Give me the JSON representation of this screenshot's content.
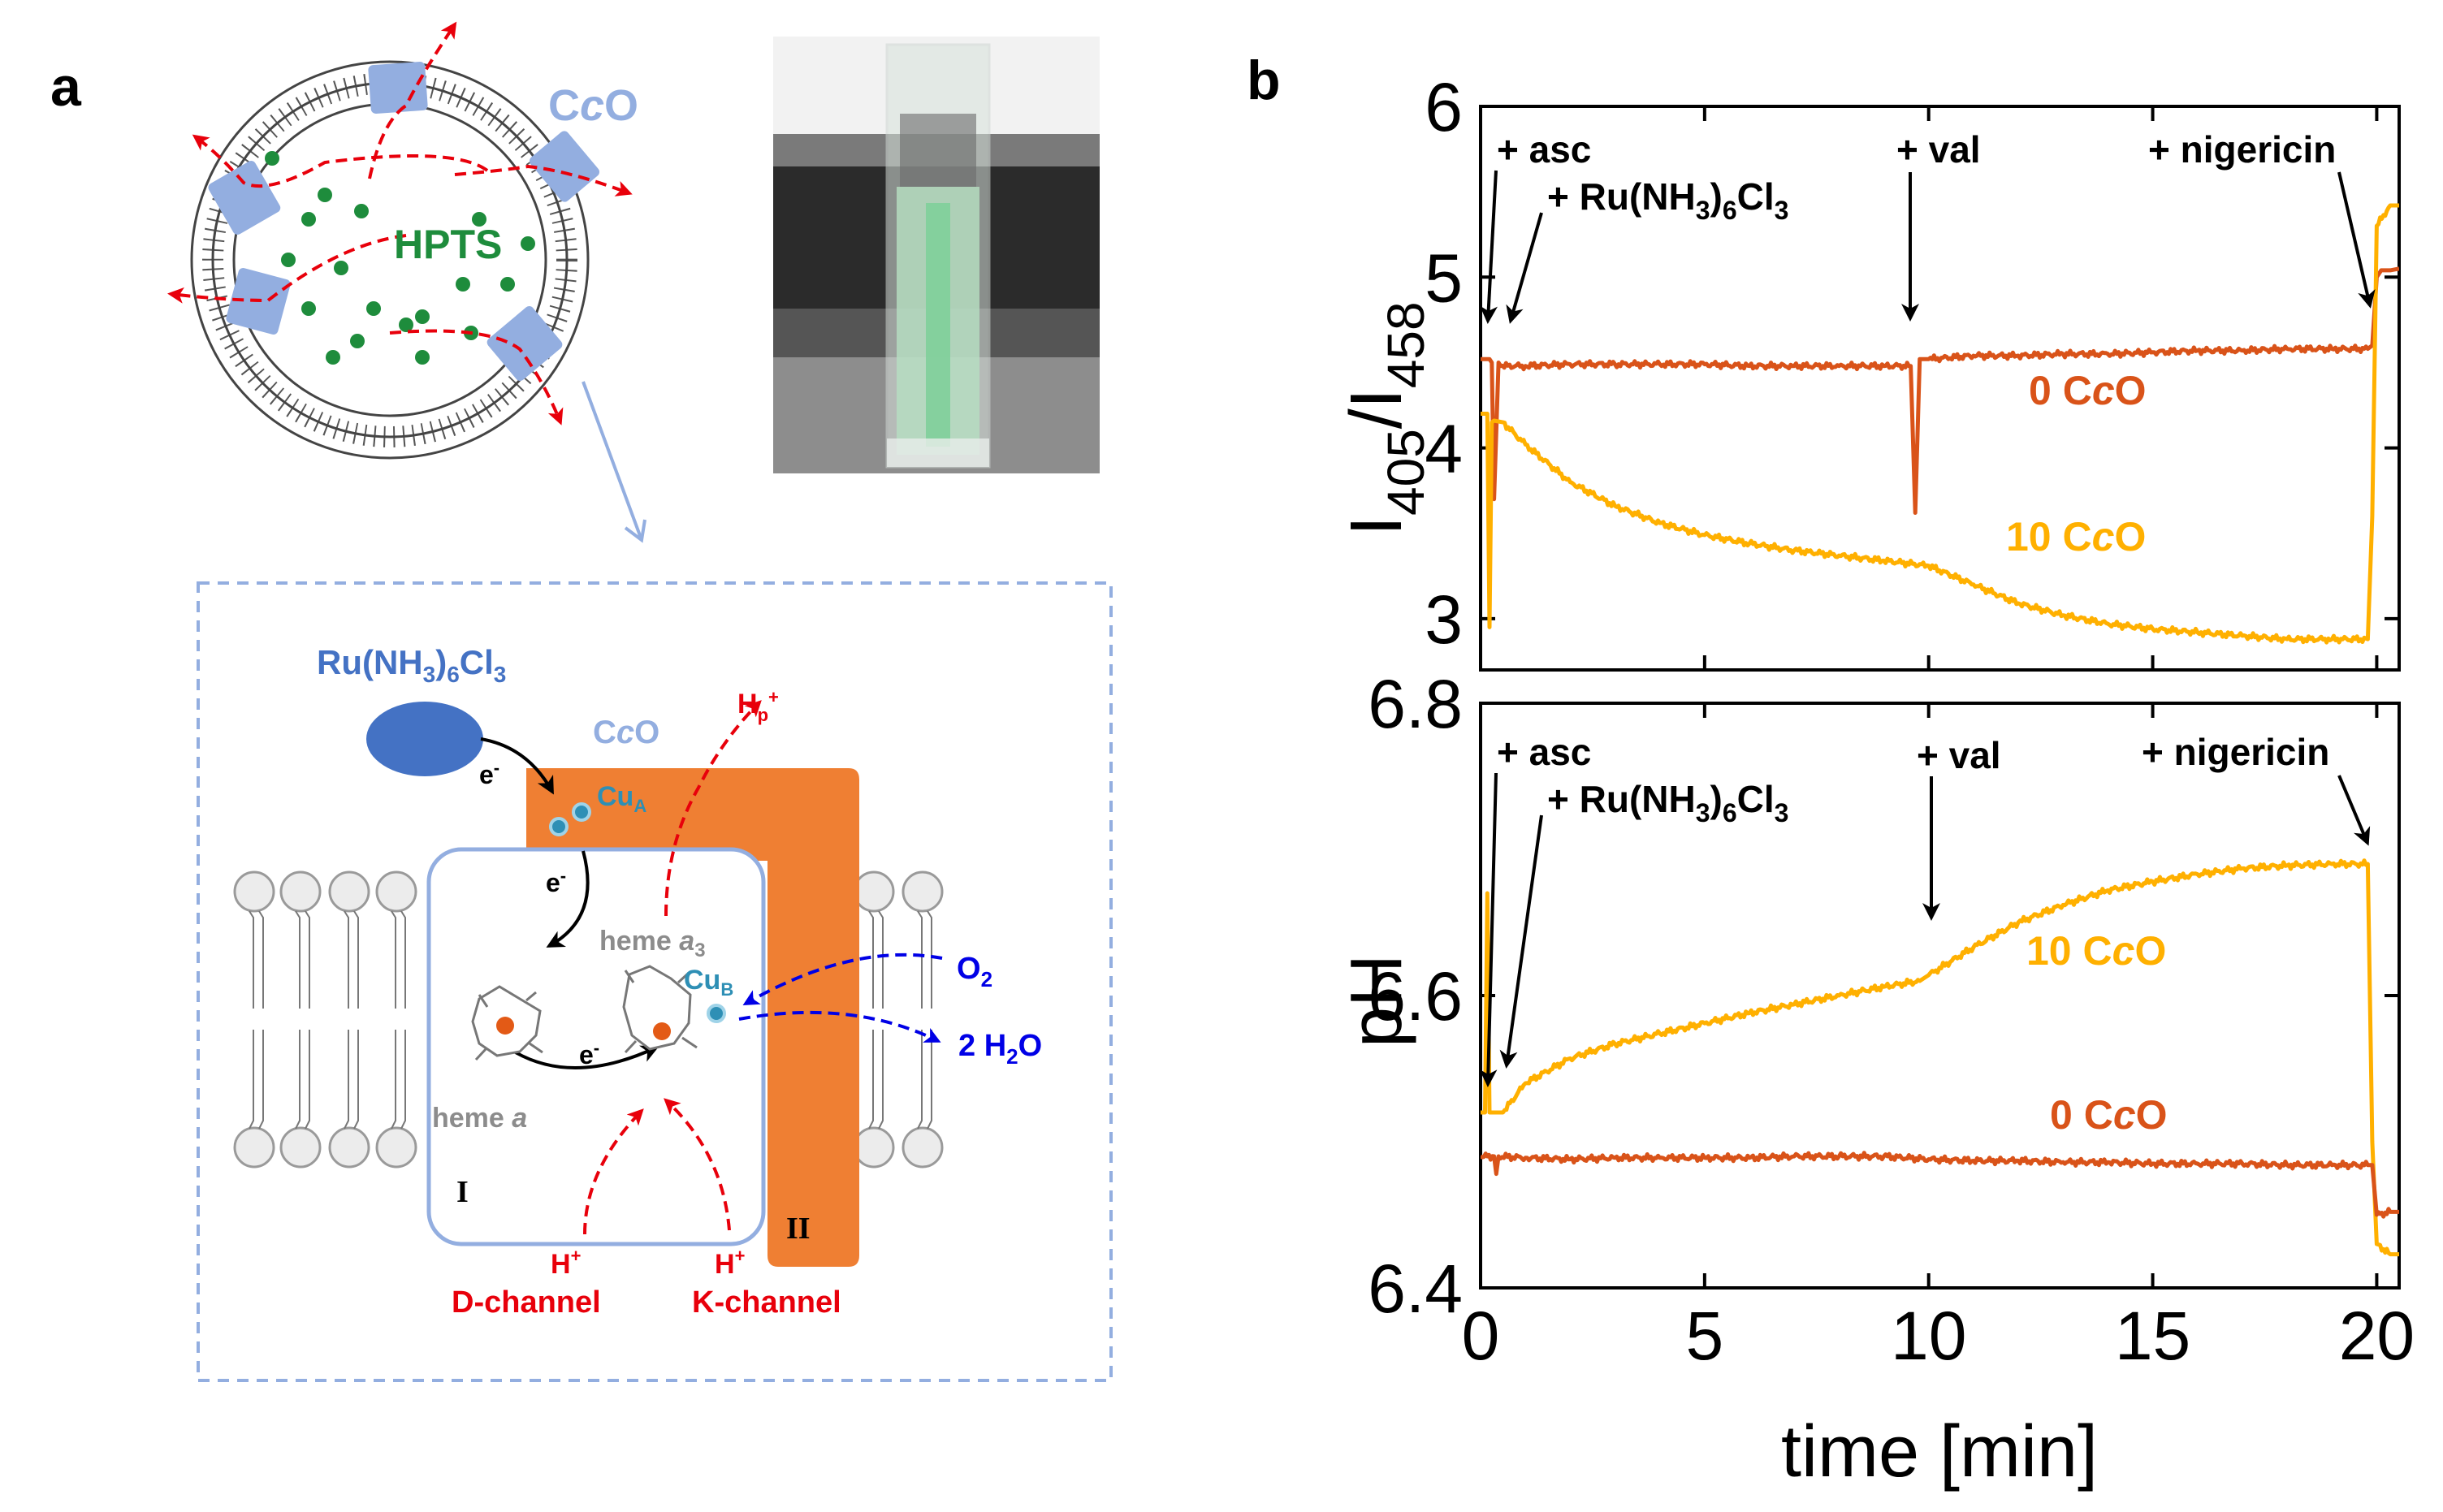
{
  "panel_a": {
    "label": "a",
    "vesicle": {
      "protein_label_parts": [
        "C",
        "c",
        "O"
      ],
      "dye_label": "HPTS"
    },
    "diagram": {
      "mediator_label_parts": [
        "Ru(NH",
        "3",
        ")",
        "6",
        "Cl",
        "3"
      ],
      "protein_label_parts": [
        "C",
        "c",
        "O"
      ],
      "cua_label": [
        "Cu",
        "A"
      ],
      "cub_label": [
        "Cu",
        "B"
      ],
      "heme_a3_label": [
        "heme ",
        "a",
        "3"
      ],
      "heme_a_label": [
        "heme ",
        "a"
      ],
      "electron_label": [
        "e",
        "-"
      ],
      "pumped_proton_label": [
        "H",
        "p",
        "+"
      ],
      "oxygen_label": [
        "O",
        "2"
      ],
      "water_label": [
        "2 H",
        "2",
        "O"
      ],
      "subunit_I": "I",
      "subunit_II": "II",
      "proton_label": [
        "H",
        "+"
      ],
      "d_channel": "D-channel",
      "k_channel": "K-channel"
    },
    "colors": {
      "membrane_protein": "#93aee0",
      "subunit_II": "#ef7f33",
      "mediator": "#4472c4",
      "hpts": "#1e8c3c",
      "proton_path": "#e8000b",
      "oxygen_path": "#0000e6",
      "copper": "#2e8fb5"
    }
  },
  "panel_b": {
    "label": "b",
    "annotations": {
      "asc": "+ asc",
      "ru_parts": [
        "+ Ru(NH",
        "3",
        ")",
        "6",
        "Cl",
        "3"
      ],
      "val": "+ val",
      "nigericin": "+ nigericin"
    }
  },
  "chart_data": [
    {
      "type": "line",
      "ylabel_parts": [
        "I",
        "405",
        "/I",
        "458"
      ],
      "xlim": [
        0,
        20.5
      ],
      "ylim": [
        2.7,
        6
      ],
      "yticks": [
        3,
        4,
        5,
        6
      ],
      "ytick_labels": [
        "3",
        "4",
        "5",
        "6"
      ],
      "series": [
        {
          "name_parts": [
            "0 C",
            "c",
            "O"
          ],
          "color": "#d95319",
          "x": [
            0.0,
            0.2,
            0.25,
            0.3,
            0.4,
            0.45,
            1,
            2,
            3,
            4,
            5,
            6,
            7,
            8,
            9,
            9.6,
            9.7,
            9.8,
            10,
            11,
            12,
            13,
            14,
            15,
            16,
            17,
            18,
            19,
            19.8,
            19.9,
            20.0,
            20.1,
            20.3,
            20.5
          ],
          "y": [
            4.52,
            4.52,
            4.5,
            3.7,
            4.5,
            4.48,
            4.48,
            4.49,
            4.49,
            4.49,
            4.49,
            4.48,
            4.48,
            4.48,
            4.48,
            4.48,
            3.62,
            4.52,
            4.52,
            4.54,
            4.54,
            4.55,
            4.55,
            4.56,
            4.57,
            4.57,
            4.58,
            4.58,
            4.58,
            4.6,
            5.0,
            5.04,
            5.04,
            5.05
          ]
        },
        {
          "name_parts": [
            "10 C",
            "c",
            "O"
          ],
          "color": "#ffb000",
          "x": [
            0.0,
            0.15,
            0.2,
            0.25,
            0.3,
            0.5,
            1,
            2,
            3,
            4,
            5,
            6,
            7,
            8,
            9,
            10,
            11,
            12,
            13,
            14,
            15,
            16,
            17,
            18,
            19,
            19.8,
            19.9,
            20.0,
            20.3,
            20.5
          ],
          "y": [
            4.2,
            4.2,
            2.95,
            4.15,
            4.16,
            4.15,
            4.02,
            3.8,
            3.66,
            3.56,
            3.49,
            3.44,
            3.4,
            3.37,
            3.34,
            3.31,
            3.2,
            3.09,
            3.02,
            2.97,
            2.94,
            2.92,
            2.9,
            2.88,
            2.88,
            2.88,
            3.6,
            5.3,
            5.42,
            5.42
          ]
        }
      ]
    },
    {
      "type": "line",
      "ylabel": "pH",
      "xlabel": "time [min]",
      "xlim": [
        0,
        20.5
      ],
      "ylim": [
        6.4,
        6.8
      ],
      "xticks": [
        0,
        5,
        10,
        15,
        20
      ],
      "xtick_labels": [
        "0",
        "5",
        "10",
        "15",
        "20"
      ],
      "yticks": [
        6.4,
        6.6,
        6.8
      ],
      "ytick_labels": [
        "6.4",
        "6.6",
        "6.8"
      ],
      "series": [
        {
          "name_parts": [
            "10 C",
            "c",
            "O"
          ],
          "color": "#ffb000",
          "x": [
            0.0,
            0.1,
            0.15,
            0.2,
            0.3,
            0.5,
            1,
            2,
            3,
            4,
            5,
            6,
            7,
            8,
            9,
            9.8,
            10,
            11,
            12,
            13,
            14,
            15,
            16,
            17,
            18,
            19,
            19.8,
            19.9,
            20.0,
            20.3,
            20.5
          ],
          "y": [
            6.52,
            6.52,
            6.67,
            6.52,
            6.52,
            6.52,
            6.54,
            6.557,
            6.567,
            6.574,
            6.581,
            6.588,
            6.594,
            6.6,
            6.606,
            6.61,
            6.614,
            6.633,
            6.65,
            6.662,
            6.672,
            6.678,
            6.683,
            6.687,
            6.689,
            6.69,
            6.69,
            6.5,
            6.43,
            6.423,
            6.423
          ]
        },
        {
          "name_parts": [
            "0 C",
            "c",
            "O"
          ],
          "color": "#d95319",
          "x": [
            0.0,
            0.3,
            0.35,
            0.4,
            1,
            2,
            3,
            4,
            5,
            6,
            7,
            8,
            9,
            10,
            11,
            12,
            13,
            14,
            15,
            16,
            17,
            18,
            19,
            19.8,
            19.9,
            20.0,
            20.3,
            20.5
          ],
          "y": [
            6.49,
            6.49,
            6.478,
            6.49,
            6.489,
            6.488,
            6.489,
            6.489,
            6.489,
            6.489,
            6.49,
            6.49,
            6.49,
            6.488,
            6.487,
            6.487,
            6.486,
            6.486,
            6.485,
            6.485,
            6.485,
            6.484,
            6.484,
            6.484,
            6.484,
            6.45,
            6.452,
            6.452
          ]
        }
      ]
    }
  ]
}
